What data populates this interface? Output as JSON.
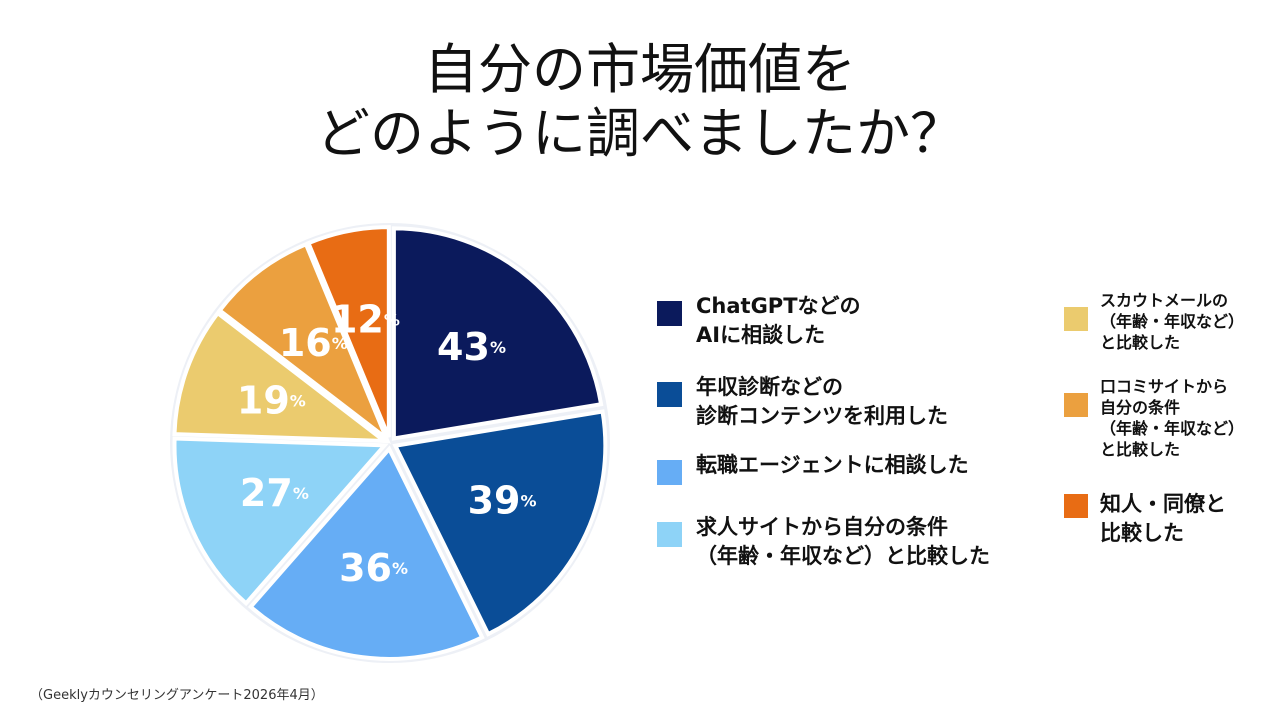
{
  "title_line1": "自分の市場価値を",
  "title_line2": "どのように調べましたか？",
  "source": "（Geeklyカウンセリングアンケート2026年4月）",
  "chart_data": {
    "type": "pie",
    "unit": "%",
    "slices": [
      {
        "label": "ChatGPTなどの\nAIに相談した",
        "value": 43,
        "color": "#0b1a5c"
      },
      {
        "label": "年収診断などの\n診断コンテンツを利用した",
        "value": 39,
        "color": "#0a4d97"
      },
      {
        "label": "転職エージェントに相談した",
        "value": 36,
        "color": "#66adf5"
      },
      {
        "label": "求人サイトから自分の条件\n（年齢・年収など）と比較した",
        "value": 27,
        "color": "#8ed3f7"
      },
      {
        "label": "スカウトメールの\n（年齢・年収など）\nと比較した",
        "value": 19,
        "color": "#ebcb6e"
      },
      {
        "label": "口コミサイトから\n自分の条件\n（年齢・年収など）\nと比較した",
        "value": 16,
        "color": "#eba03f"
      },
      {
        "label": "知人・同僚と\n比較した",
        "value": 12,
        "color": "#e86c14"
      }
    ]
  }
}
